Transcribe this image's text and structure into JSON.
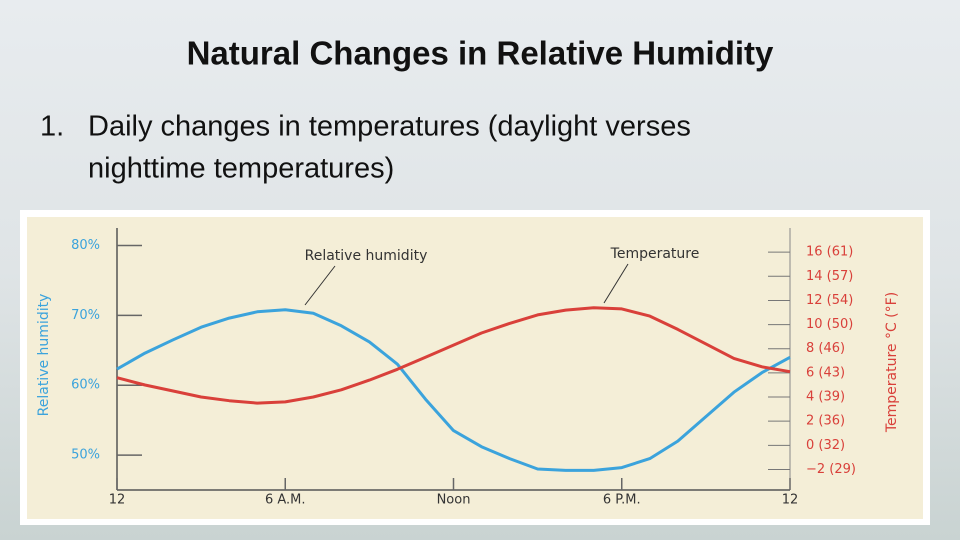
{
  "slide": {
    "title": "Natural Changes in Relative Humidity",
    "bullet_number": "1.",
    "bullet_lines": [
      "Daily changes in temperatures (daylight verses",
      "nighttime temperatures)"
    ]
  },
  "chart_data": {
    "type": "line",
    "annotations": [
      "Relative humidity",
      "Temperature"
    ],
    "y_label": "Relative humidity",
    "y2_label": "Temperature °C (°F)",
    "x": [
      0,
      1,
      2,
      3,
      4,
      5,
      6,
      7,
      8,
      9,
      10,
      11,
      12,
      13,
      14,
      15,
      16,
      17,
      18,
      19,
      20,
      21,
      22,
      23,
      24
    ],
    "xlim": [
      0,
      24
    ],
    "xticks": [
      {
        "value": 0,
        "label": "12"
      },
      {
        "value": 6,
        "label": "6 A.M."
      },
      {
        "value": 12,
        "label": "Noon"
      },
      {
        "value": 18,
        "label": "6 P.M."
      },
      {
        "value": 24,
        "label": "12"
      }
    ],
    "ylim": [
      45,
      82.5
    ],
    "yticks": [
      {
        "value": 50,
        "label": "50%"
      },
      {
        "value": 60,
        "label": "60%"
      },
      {
        "value": 70,
        "label": "70%"
      },
      {
        "value": 80,
        "label": "80%"
      }
    ],
    "y2lim": [
      -3.7,
      18
    ],
    "y2ticks": [
      {
        "value": -2,
        "label": "−2 (29)"
      },
      {
        "value": 0,
        "label": "0 (32)"
      },
      {
        "value": 2,
        "label": "2 (36)"
      },
      {
        "value": 4,
        "label": "4 (39)"
      },
      {
        "value": 6,
        "label": "6 (43)"
      },
      {
        "value": 8,
        "label": "8 (46)"
      },
      {
        "value": 10,
        "label": "10 (50)"
      },
      {
        "value": 12,
        "label": "12 (54)"
      },
      {
        "value": 14,
        "label": "14 (57)"
      },
      {
        "value": 16,
        "label": "16 (61)"
      }
    ],
    "series": [
      {
        "name": "Relative humidity",
        "color": "#3ba3dc",
        "axis": "y",
        "values": [
          62.3,
          64.6,
          66.5,
          68.3,
          69.6,
          70.5,
          70.8,
          70.3,
          68.5,
          66.2,
          63.0,
          58.0,
          53.5,
          51.2,
          49.5,
          48.0,
          47.8,
          47.8,
          48.2,
          49.5,
          52.0,
          55.5,
          59.0,
          61.8,
          64.0
        ]
      },
      {
        "name": "Temperature",
        "color": "#d9403a",
        "axis": "y2",
        "values": [
          5.6,
          5.0,
          4.5,
          4.0,
          3.7,
          3.5,
          3.6,
          4.0,
          4.6,
          5.4,
          6.3,
          7.3,
          8.3,
          9.3,
          10.1,
          10.8,
          11.2,
          11.4,
          11.3,
          10.7,
          9.6,
          8.4,
          7.2,
          6.5,
          6.1
        ]
      }
    ]
  }
}
